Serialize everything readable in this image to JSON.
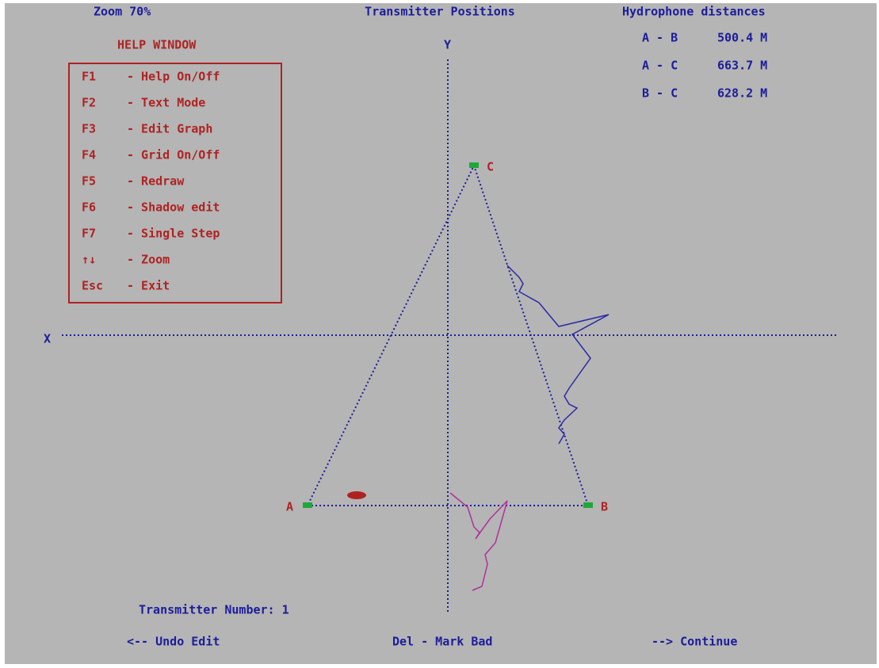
{
  "header": {
    "zoom": "Zoom 70%",
    "title": "Transmitter Positions",
    "distances_title": "Hydrophone distances"
  },
  "distances": [
    {
      "pair": "A - B",
      "value": "500.4 M"
    },
    {
      "pair": "A - C",
      "value": "663.7 M"
    },
    {
      "pair": "B - C",
      "value": "628.2 M"
    }
  ],
  "help": {
    "title": "HELP WINDOW",
    "items": [
      {
        "key": "F1",
        "desc": "- Help On/Off"
      },
      {
        "key": "F2",
        "desc": "- Text Mode"
      },
      {
        "key": "F3",
        "desc": "- Edit Graph"
      },
      {
        "key": "F4",
        "desc": "- Grid On/Off"
      },
      {
        "key": "F5",
        "desc": "- Redraw"
      },
      {
        "key": "F6",
        "desc": "- Shadow edit"
      },
      {
        "key": "F7",
        "desc": "- Single Step"
      },
      {
        "key": "↑↓",
        "desc": "- Zoom"
      },
      {
        "key": "Esc",
        "desc": "- Exit"
      }
    ]
  },
  "axes": {
    "x": "X",
    "y": "Y"
  },
  "stations": {
    "a": "A",
    "b": "B",
    "c": "C"
  },
  "transmitter": "Transmitter Number: 1",
  "footer": {
    "undo": "<-- Undo Edit",
    "mark_bad": "Del - Mark Bad",
    "continue": "--> Continue"
  }
}
